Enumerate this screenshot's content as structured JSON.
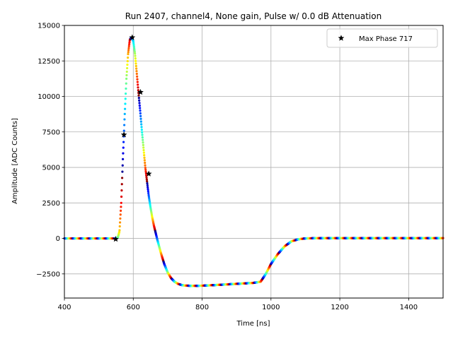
{
  "chart_data": {
    "type": "scatter",
    "title": "Run 2407, channel4, None gain, Pulse w/ 0.0 dB Attenuation",
    "xlabel": "Time [ns]",
    "ylabel": "Amplitude [ADC Counts]",
    "xlim": [
      400,
      1500
    ],
    "ylim": [
      -4200,
      15000
    ],
    "xticks": [
      400,
      600,
      800,
      1000,
      1200,
      1400
    ],
    "yticks": [
      -2500,
      0,
      2500,
      5000,
      7500,
      10000,
      12500,
      15000
    ],
    "grid": true,
    "legend": {
      "placement": "top-right",
      "entries": [
        "Max Phase 717"
      ]
    },
    "colormap": "jet",
    "pulse_curve": {
      "x": [
        400,
        540,
        550,
        555,
        560,
        565,
        570,
        575,
        580,
        585,
        590,
        595,
        600,
        605,
        610,
        615,
        620,
        625,
        630,
        635,
        640,
        645,
        650,
        655,
        660,
        665,
        670,
        680,
        690,
        700,
        710,
        720,
        730,
        740,
        750,
        770,
        800,
        850,
        900,
        950,
        970,
        985,
        1000,
        1020,
        1040,
        1060,
        1080,
        1100,
        1150,
        1200,
        1300,
        1400,
        1500
      ],
      "y": [
        0,
        0,
        0,
        50,
        500,
        2500,
        5700,
        8600,
        11200,
        13000,
        14000,
        14150,
        13900,
        13000,
        11700,
        10300,
        9000,
        7600,
        6300,
        5000,
        4000,
        3000,
        2200,
        1500,
        900,
        400,
        -100,
        -1000,
        -1800,
        -2400,
        -2800,
        -3050,
        -3200,
        -3280,
        -3320,
        -3340,
        -3330,
        -3270,
        -3200,
        -3130,
        -3050,
        -2500,
        -1800,
        -1100,
        -550,
        -200,
        -60,
        0,
        20,
        20,
        20,
        20,
        20
      ]
    },
    "max_phase_points": {
      "name": "Max Phase 717",
      "x": [
        549,
        573,
        597,
        621,
        645
      ],
      "y": [
        -50,
        7300,
        14150,
        10300,
        4550
      ]
    }
  }
}
